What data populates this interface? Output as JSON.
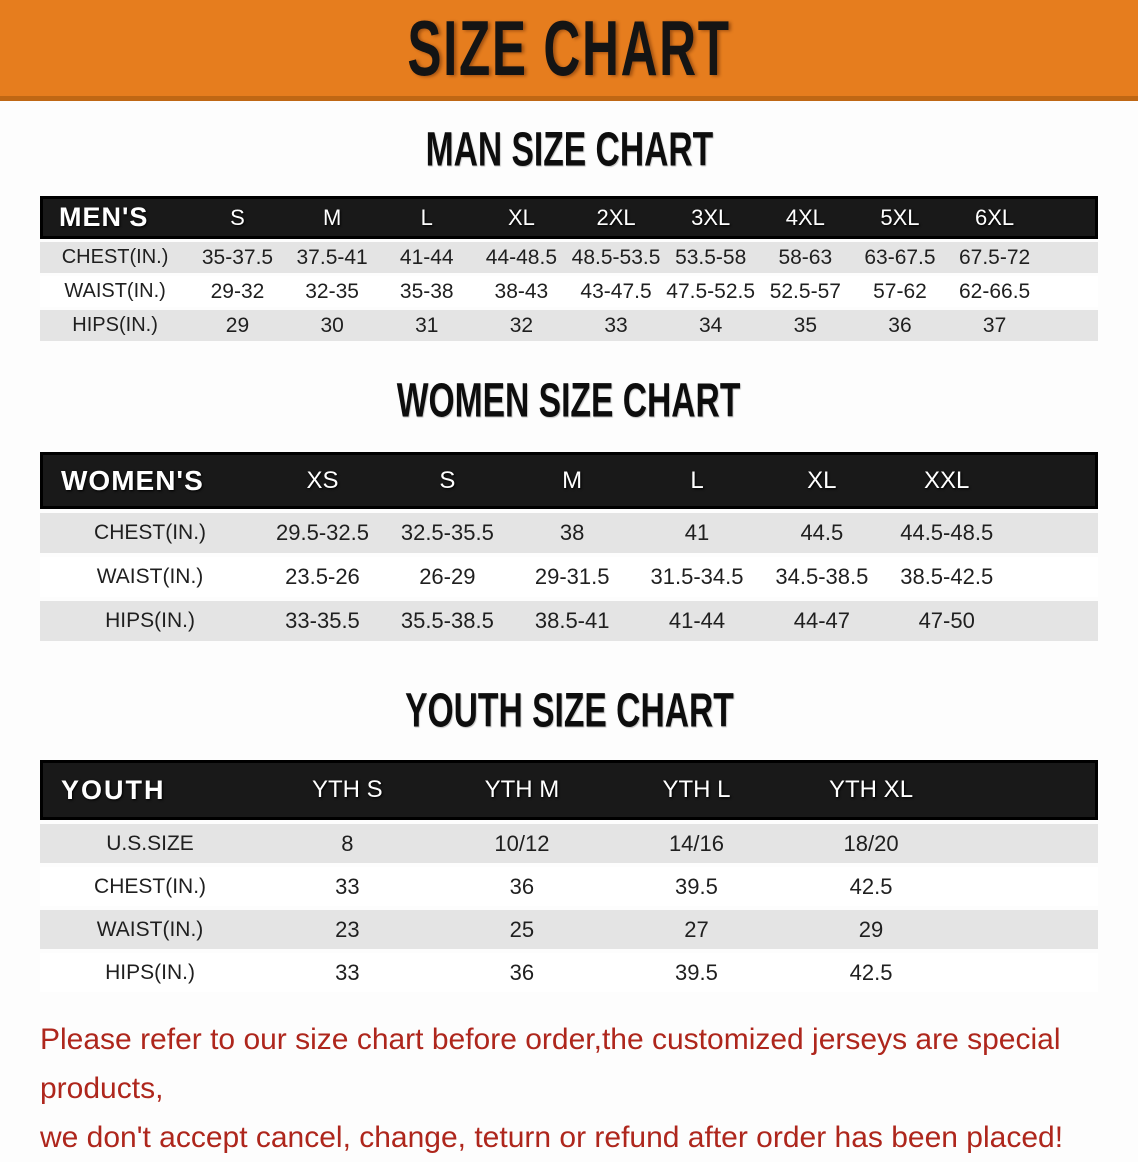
{
  "banner": {
    "title": "SIZE CHART",
    "bg_color": "#e67d1e"
  },
  "sections": [
    {
      "id": "men",
      "heading": "MAN SIZE CHART",
      "table": {
        "corner": "MEN'S",
        "columns": [
          "S",
          "M",
          "L",
          "XL",
          "2XL",
          "3XL",
          "4XL",
          "5XL",
          "6XL"
        ],
        "rows": [
          {
            "label": "CHEST(IN.)",
            "values": [
              "35-37.5",
              "37.5-41",
              "41-44",
              "44-48.5",
              "48.5-53.5",
              "53.5-58",
              "58-63",
              "63-67.5",
              "67.5-72"
            ]
          },
          {
            "label": "WAIST(IN.)",
            "values": [
              "29-32",
              "32-35",
              "35-38",
              "38-43",
              "43-47.5",
              "47.5-52.5",
              "52.5-57",
              "57-62",
              "62-66.5"
            ]
          },
          {
            "label": "HIPS(IN.)",
            "values": [
              "29",
              "30",
              "31",
              "32",
              "33",
              "34",
              "35",
              "36",
              "37"
            ]
          }
        ]
      }
    },
    {
      "id": "women",
      "heading": "WOMEN SIZE CHART",
      "table": {
        "corner": "WOMEN'S",
        "columns": [
          "XS",
          "S",
          "M",
          "L",
          "XL",
          "XXL"
        ],
        "rows": [
          {
            "label": "CHEST(IN.)",
            "values": [
              "29.5-32.5",
              "32.5-35.5",
              "38",
              "41",
              "44.5",
              "44.5-48.5"
            ]
          },
          {
            "label": "WAIST(IN.)",
            "values": [
              "23.5-26",
              "26-29",
              "29-31.5",
              "31.5-34.5",
              "34.5-38.5",
              "38.5-42.5"
            ]
          },
          {
            "label": "HIPS(IN.)",
            "values": [
              "33-35.5",
              "35.5-38.5",
              "38.5-41",
              "41-44",
              "44-47",
              "47-50"
            ]
          }
        ]
      }
    },
    {
      "id": "youth",
      "heading": "YOUTH SIZE CHART",
      "table": {
        "corner": "YOUTH",
        "columns": [
          "YTH S",
          "YTH M",
          "YTH L",
          "YTH XL"
        ],
        "rows": [
          {
            "label": "U.S.SIZE",
            "values": [
              "8",
              "10/12",
              "14/16",
              "18/20"
            ]
          },
          {
            "label": "CHEST(IN.)",
            "values": [
              "33",
              "36",
              "39.5",
              "42.5"
            ]
          },
          {
            "label": "WAIST(IN.)",
            "values": [
              "23",
              "25",
              "27",
              "29"
            ]
          },
          {
            "label": "HIPS(IN.)",
            "values": [
              "33",
              "36",
              "39.5",
              "42.5"
            ]
          }
        ]
      }
    }
  ],
  "footer": {
    "line1": "Please refer to our size chart before order,the customized jerseys are special products,",
    "line2": "we don't accept cancel, change, teturn or refund after order has been placed!",
    "color": "#ae261c"
  }
}
